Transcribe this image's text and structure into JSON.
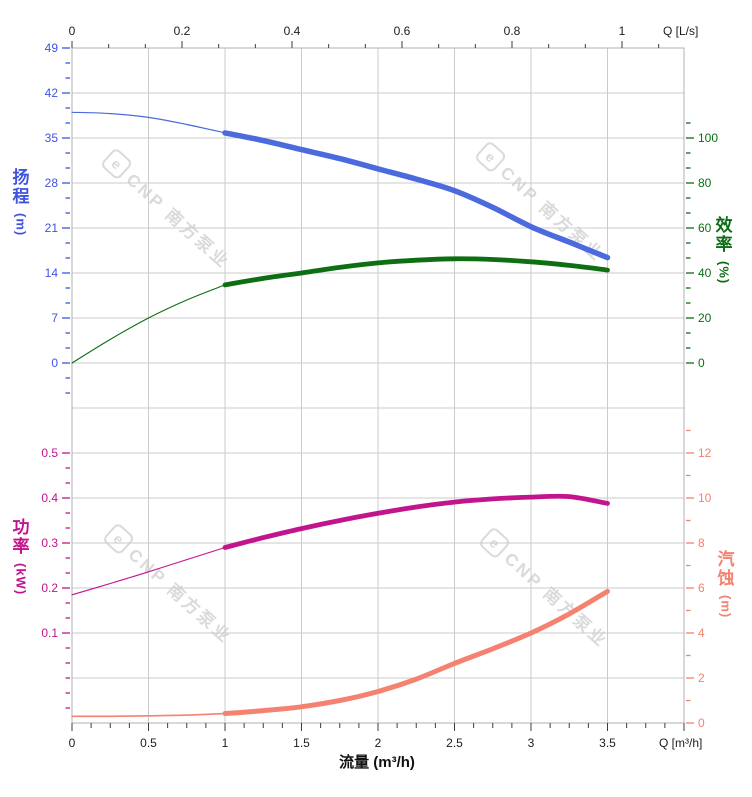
{
  "chart_data": {
    "type": "line",
    "x_axis_bottom": {
      "title": "流量 (m³/h)",
      "unit_label": "Q [m³/h]",
      "tick_labels": [
        "0",
        "0.5",
        "1",
        "1.5",
        "2",
        "2.5",
        "3",
        "3.5"
      ],
      "tick_values": [
        0,
        0.5,
        1,
        1.5,
        2,
        2.5,
        3,
        3.5
      ],
      "range_m3h": [
        0,
        4
      ]
    },
    "x_axis_top": {
      "unit_label": "Q [L/s]",
      "tick_labels": [
        "0",
        "0.2",
        "0.4",
        "0.6",
        "0.8",
        "1"
      ],
      "tick_values": [
        0,
        0.2,
        0.4,
        0.6,
        0.8,
        1
      ],
      "range_ls": [
        0,
        1.11
      ]
    },
    "axes": {
      "head": {
        "title": "扬程",
        "unit": "(m)",
        "color": "#3f53e2",
        "ticks": [
          49,
          42,
          35,
          28,
          21,
          14,
          7,
          0
        ]
      },
      "efficiency": {
        "title": "效率",
        "unit": "(%)",
        "color": "#0c6e14",
        "ticks": [
          100,
          80,
          60,
          40,
          20,
          0
        ]
      },
      "power": {
        "title": "功率",
        "unit": "(kW)",
        "color": "#c2148c",
        "ticks": [
          0.5,
          0.4,
          0.3,
          0.2,
          0.1
        ]
      },
      "npsh": {
        "title": "汽蚀",
        "unit": "(m)",
        "color": "#f58170",
        "ticks": [
          12,
          10,
          8,
          6,
          4,
          2,
          0
        ]
      }
    },
    "series": [
      {
        "id": "head",
        "name": "扬程",
        "axis": "head",
        "color": "#4a6ade",
        "split_q": 1,
        "thin_width": 1.2,
        "thick_width": 5.5,
        "points": [
          [
            0,
            39
          ],
          [
            0.25,
            38.8
          ],
          [
            0.5,
            38.2
          ],
          [
            0.75,
            37.1
          ],
          [
            1,
            35.8
          ],
          [
            1.25,
            34.6
          ],
          [
            1.5,
            33.2
          ],
          [
            1.75,
            31.8
          ],
          [
            2,
            30.2
          ],
          [
            2.25,
            28.6
          ],
          [
            2.5,
            26.8
          ],
          [
            2.75,
            24.2
          ],
          [
            3,
            21.2
          ],
          [
            3.25,
            18.8
          ],
          [
            3.5,
            16.4
          ]
        ]
      },
      {
        "id": "efficiency",
        "name": "效率",
        "axis": "efficiency",
        "color": "#0d6e12",
        "split_q": 1,
        "thin_width": 1.1,
        "thick_width": 4.8,
        "points": [
          [
            0,
            0
          ],
          [
            0.25,
            10.5
          ],
          [
            0.5,
            20
          ],
          [
            0.75,
            28
          ],
          [
            1,
            34.7
          ],
          [
            1.25,
            37.6
          ],
          [
            1.5,
            40
          ],
          [
            1.75,
            42.5
          ],
          [
            2,
            44.5
          ],
          [
            2.25,
            45.7
          ],
          [
            2.5,
            46.3
          ],
          [
            2.75,
            46
          ],
          [
            3,
            45
          ],
          [
            3.25,
            43.4
          ],
          [
            3.5,
            41.3
          ]
        ]
      },
      {
        "id": "power",
        "name": "功率",
        "axis": "power",
        "color": "#c2148c",
        "split_q": 1,
        "thin_width": 1.1,
        "thick_width": 4.8,
        "points": [
          [
            0,
            0.185
          ],
          [
            0.25,
            0.21
          ],
          [
            0.5,
            0.236
          ],
          [
            0.75,
            0.263
          ],
          [
            1,
            0.29
          ],
          [
            1.25,
            0.312
          ],
          [
            1.5,
            0.332
          ],
          [
            1.75,
            0.35
          ],
          [
            2,
            0.366
          ],
          [
            2.25,
            0.38
          ],
          [
            2.5,
            0.391
          ],
          [
            2.75,
            0.398
          ],
          [
            3,
            0.402
          ],
          [
            3.25,
            0.403
          ],
          [
            3.5,
            0.388
          ]
        ]
      },
      {
        "id": "npsh",
        "name": "汽蚀",
        "axis": "npsh",
        "color": "#f58170",
        "split_q": 1,
        "thin_width": 1.6,
        "thick_width": 5,
        "points": [
          [
            0,
            0.3
          ],
          [
            0.25,
            0.3
          ],
          [
            0.5,
            0.32
          ],
          [
            0.75,
            0.35
          ],
          [
            1,
            0.42
          ],
          [
            1.25,
            0.55
          ],
          [
            1.5,
            0.72
          ],
          [
            1.75,
            1.0
          ],
          [
            2,
            1.4
          ],
          [
            2.25,
            1.95
          ],
          [
            2.5,
            2.65
          ],
          [
            2.75,
            3.3
          ],
          [
            3,
            4.0
          ],
          [
            3.25,
            4.85
          ],
          [
            3.5,
            5.85
          ]
        ]
      }
    ],
    "grid": {
      "on": true,
      "color": "#cbcbcb",
      "border_color": "#b2b2b2"
    },
    "ruler": {
      "tick_color": "#3c3c3c",
      "label_color": "#1c1c1c"
    }
  },
  "watermark": {
    "logo_letter": "e",
    "text": "CNP 南方泵业",
    "color": "#dadada"
  }
}
